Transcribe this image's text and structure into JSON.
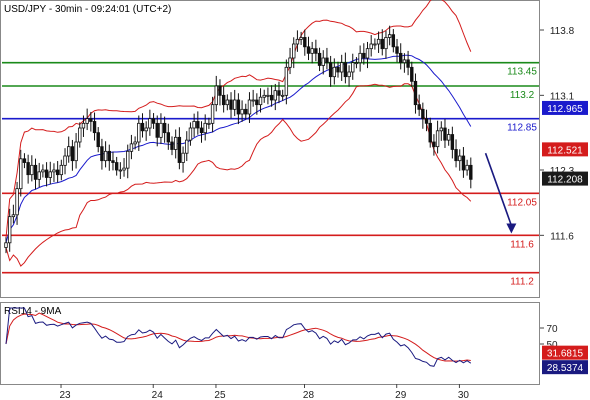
{
  "chart_data": [
    {
      "type": "candlestick",
      "title": "USD/JPY - 30min - 09:24:01 (UTC+2)",
      "x_labels": [
        "23",
        "24",
        "25",
        "28",
        "29",
        "30"
      ],
      "y_ticks": [
        {
          "value": 113.8,
          "label": "113.8"
        },
        {
          "value": 113.1,
          "label": "113.1"
        },
        {
          "value": 112.3,
          "label": "112.3"
        },
        {
          "value": 111.6,
          "label": "111.6"
        }
      ],
      "ylim": [
        110.95,
        114.1
      ],
      "horizontal_levels": [
        {
          "value": 113.45,
          "label": "113.45",
          "color": "#1a8a1a"
        },
        {
          "value": 113.2,
          "label": "113.2",
          "color": "#1a8a1a"
        },
        {
          "value": 112.85,
          "label": "112.85",
          "color": "#1a1acc"
        },
        {
          "value": 112.05,
          "label": "112.05",
          "color": "#d41c1c"
        },
        {
          "value": 111.6,
          "label": "111.6",
          "color": "#d41c1c"
        },
        {
          "value": 111.2,
          "label": "111.2",
          "color": "#d41c1c"
        }
      ],
      "price_tags": [
        {
          "value": 112.965,
          "label": "112.965",
          "color": "#1a1acc"
        },
        {
          "value": 112.521,
          "label": "112.521",
          "color": "#d41c1c"
        },
        {
          "value": 112.208,
          "label": "112.208",
          "color": "#1a1a1a"
        }
      ],
      "projection_arrow": {
        "from": {
          "x_index": 130,
          "y": 112.48
        },
        "to": {
          "x_index": 137,
          "y": 111.62
        },
        "color": "#1a1a80"
      },
      "indicators": [
        "Bollinger Bands (20)",
        "Moving Average"
      ],
      "price_series": [
        111.52,
        111.8,
        111.82,
        112.1,
        112.42,
        112.38,
        112.25,
        112.35,
        112.2,
        112.28,
        112.3,
        112.22,
        112.28,
        112.3,
        112.25,
        112.35,
        112.45,
        112.55,
        112.4,
        112.6,
        112.75,
        112.8,
        112.85,
        112.82,
        112.7,
        112.55,
        112.4,
        112.5,
        112.4,
        112.38,
        112.3,
        112.3,
        112.32,
        112.5,
        112.58,
        112.6,
        112.8,
        112.72,
        112.75,
        112.85,
        112.8,
        112.65,
        112.8,
        112.7,
        112.6,
        112.52,
        112.65,
        112.38,
        112.48,
        112.62,
        112.75,
        112.82,
        112.75,
        112.7,
        112.8,
        112.8,
        113.0,
        113.2,
        113.1,
        113.0,
        113.05,
        112.95,
        113.05,
        112.9,
        112.95,
        112.9,
        113.05,
        113.05,
        113.0,
        113.08,
        113.1,
        113.1,
        113.05,
        113.15,
        113.1,
        113.1,
        113.4,
        113.5,
        113.65,
        113.7,
        113.72,
        113.62,
        113.55,
        113.6,
        113.55,
        113.42,
        113.5,
        113.45,
        113.3,
        113.4,
        113.35,
        113.45,
        113.3,
        113.35,
        113.45,
        113.45,
        113.55,
        113.5,
        113.6,
        113.65,
        113.65,
        113.7,
        113.6,
        113.72,
        113.75,
        113.62,
        113.55,
        113.45,
        113.48,
        113.4,
        113.25,
        113.0,
        112.95,
        112.85,
        112.8,
        112.6,
        112.55,
        112.72,
        112.75,
        112.62,
        112.68,
        112.52,
        112.4,
        112.45,
        112.3,
        112.35,
        112.2
      ],
      "sub_chart": {
        "title": "RSI14 - 9MA",
        "y_ticks": [
          {
            "value": 70,
            "label": "70"
          },
          {
            "value": 50,
            "label": "50"
          }
        ],
        "ylim": [
          0,
          100
        ],
        "price_tags": [
          {
            "value": 31.6815,
            "label": "31.6815",
            "color": "#d41c1c"
          },
          {
            "value": 28.5374,
            "label": "28.5374",
            "color": "#1a1a80"
          }
        ]
      }
    }
  ]
}
